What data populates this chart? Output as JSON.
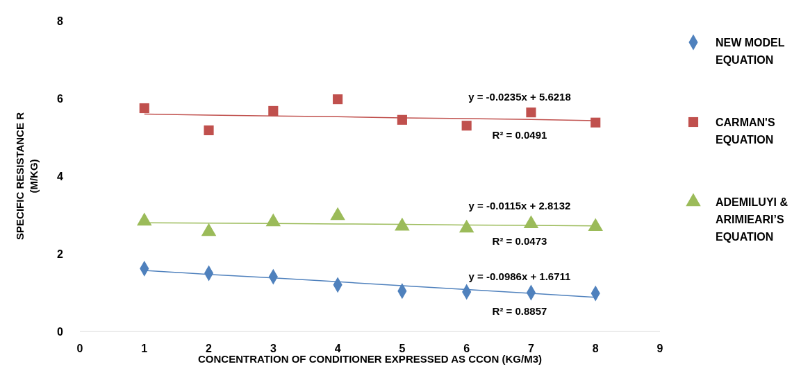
{
  "chart_data": {
    "type": "scatter",
    "xlabel": "CONCENTRATION OF CONDITIONER EXPRESSED AS CCON (KG/M3)",
    "ylabel": "SPECIFIC RESISTANCE R\n(M/KG)",
    "x": [
      1,
      2,
      3,
      4,
      5,
      6,
      7,
      8
    ],
    "series": [
      {
        "name": "NEW MODEL EQUATION",
        "color": "#4f81bd",
        "marker": "diamond",
        "values": [
          1.62,
          1.5,
          1.41,
          1.2,
          1.04,
          1.02,
          1.0,
          0.98
        ]
      },
      {
        "name": "CARMAN'S EQUATION",
        "color": "#c0504d",
        "marker": "square",
        "values": [
          5.75,
          5.18,
          5.68,
          5.98,
          5.45,
          5.3,
          5.64,
          5.38
        ]
      },
      {
        "name": "ADEMILUYI & ARIMIEARI’S EQUATION",
        "color": "#9bbb59",
        "marker": "triangle",
        "values": [
          2.84,
          2.57,
          2.82,
          2.98,
          2.71,
          2.66,
          2.77,
          2.7
        ]
      },
      {
        "type": "line",
        "color": "#4f81bd",
        "values": [
          1.57,
          1.47,
          1.38,
          1.28,
          1.18,
          1.08,
          0.98,
          0.88
        ]
      },
      {
        "type": "line",
        "color": "#c0504d",
        "values": [
          5.6,
          5.57,
          5.55,
          5.53,
          5.5,
          5.48,
          5.46,
          5.43
        ]
      },
      {
        "type": "line",
        "color": "#9bbb59",
        "values": [
          2.8,
          2.79,
          2.78,
          2.77,
          2.76,
          2.74,
          2.73,
          2.72
        ]
      }
    ],
    "xlim": [
      0,
      9
    ],
    "xticks": [
      0,
      1,
      2,
      3,
      4,
      5,
      6,
      7,
      8,
      9
    ],
    "ylim": [
      0,
      8
    ],
    "yticks": [
      0,
      2,
      4,
      6,
      8
    ],
    "legend": "right",
    "grid": false,
    "annotations": [
      "y = -0.0235x + 5.6218",
      "R² = 0.0491",
      "y = -0.0115x + 2.8132",
      "R² = 0.0473",
      "y = -0.0986x + 1.6711",
      "R² = 0.8857"
    ]
  }
}
